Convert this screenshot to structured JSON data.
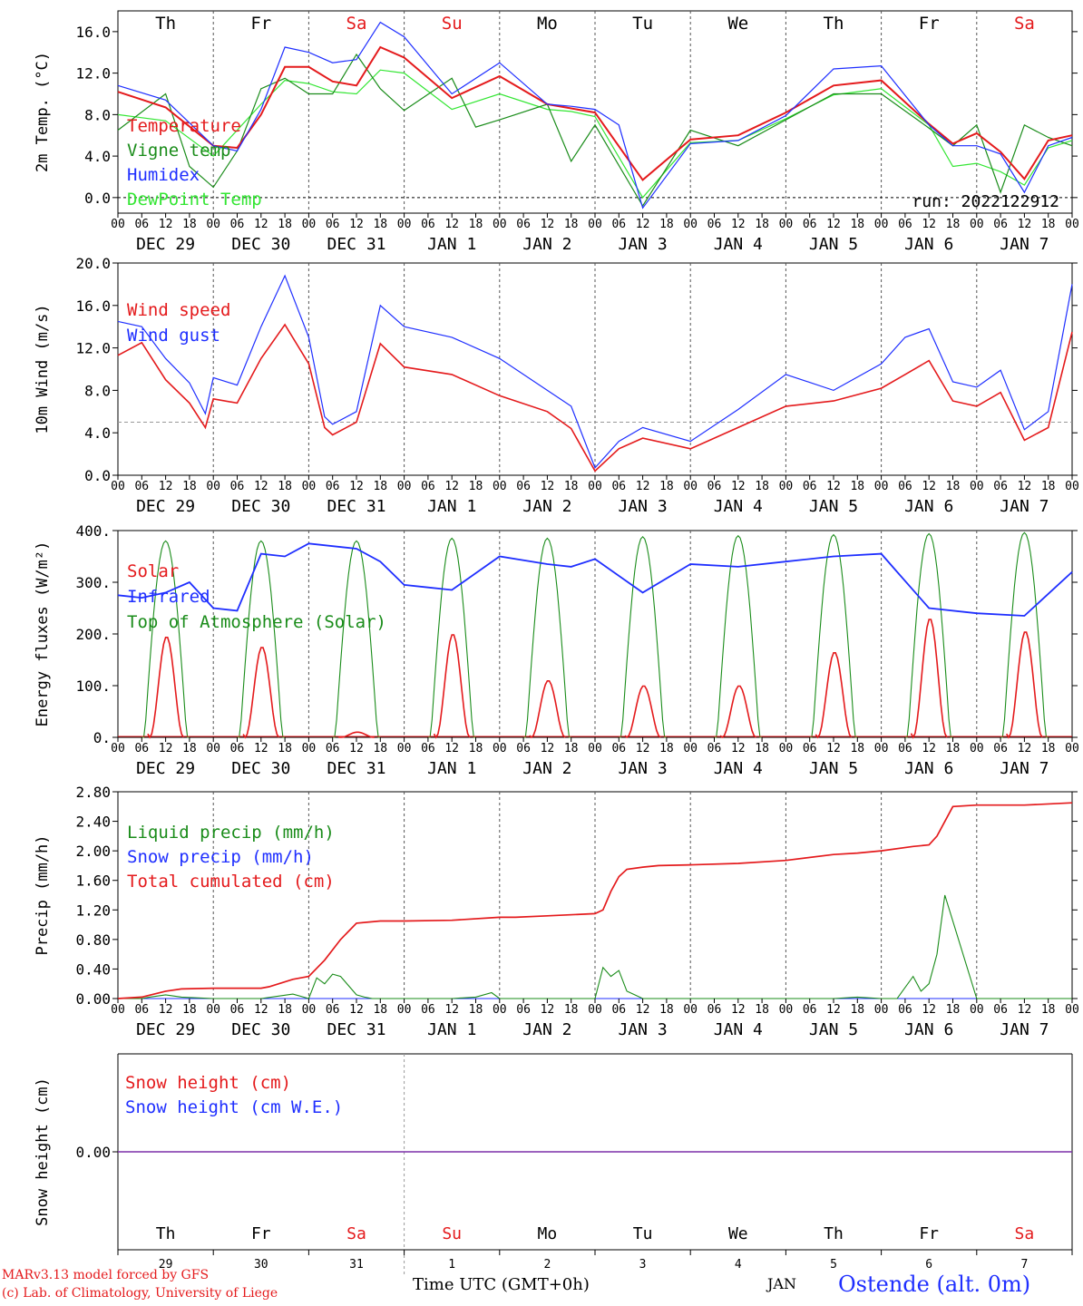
{
  "chart_data": [
    {
      "type": "line",
      "ylabel": "2m Temp. (°C)",
      "ylim": [
        -1.5,
        18.0
      ],
      "yticks": [
        "0.0",
        "4.0",
        "8.0",
        "12.0",
        "16.0"
      ],
      "annotation": "run: 2022122912",
      "weekdays": [
        "Th",
        "Fr",
        "Sa",
        "Su",
        "Mo",
        "Tu",
        "We",
        "Th",
        "Fr",
        "Sa"
      ],
      "weekday_colors": [
        "#000000",
        "#000000",
        "#e41a1c",
        "#e41a1c",
        "#000000",
        "#000000",
        "#000000",
        "#000000",
        "#000000",
        "#e41a1c"
      ],
      "series": [
        {
          "name": "Temperature",
          "color": "#e41a1c",
          "x": [
            0,
            12,
            24,
            30,
            36,
            42,
            48,
            54,
            60,
            66,
            72,
            84,
            96,
            108,
            114,
            120,
            132,
            144,
            156,
            168,
            180,
            192,
            204,
            210,
            216,
            222,
            228,
            234,
            240
          ],
          "values": [
            10.2,
            8.7,
            5.0,
            4.8,
            8.0,
            12.6,
            12.6,
            11.2,
            10.8,
            14.5,
            13.5,
            9.6,
            11.7,
            9.0,
            8.6,
            8.2,
            1.7,
            5.6,
            6.0,
            8.2,
            10.8,
            11.3,
            7.1,
            5.2,
            6.2,
            4.4,
            1.8,
            5.5,
            6.0
          ]
        },
        {
          "name": "Vigne temp",
          "color": "#1a8c1a",
          "x": [
            0,
            12,
            18,
            24,
            30,
            36,
            42,
            48,
            54,
            60,
            66,
            72,
            84,
            90,
            96,
            108,
            114,
            120,
            132,
            144,
            156,
            168,
            180,
            192,
            204,
            210,
            216,
            222,
            228,
            234,
            240
          ],
          "values": [
            6.5,
            10.0,
            3.0,
            1.0,
            4.5,
            10.5,
            11.5,
            10.0,
            10.0,
            13.8,
            10.5,
            8.4,
            11.5,
            6.8,
            7.5,
            9.0,
            3.5,
            7.0,
            -0.8,
            6.5,
            5.0,
            7.5,
            10.0,
            10.0,
            6.7,
            5.0,
            7.0,
            0.5,
            7.0,
            5.8,
            5.0
          ]
        },
        {
          "name": "Humidex",
          "color": "#1f2fff",
          "x": [
            0,
            12,
            24,
            30,
            36,
            42,
            48,
            54,
            60,
            66,
            72,
            84,
            96,
            108,
            114,
            120,
            126,
            132,
            144,
            156,
            168,
            180,
            192,
            204,
            210,
            216,
            222,
            228,
            234,
            240
          ],
          "values": [
            10.8,
            9.4,
            5.0,
            4.5,
            8.5,
            14.5,
            14.0,
            13.0,
            13.3,
            16.9,
            15.5,
            10.0,
            13.0,
            9.0,
            8.8,
            8.5,
            7.0,
            -1.0,
            5.2,
            5.5,
            7.9,
            12.4,
            12.7,
            7.0,
            5.0,
            5.0,
            4.2,
            0.5,
            5.0,
            5.8
          ]
        },
        {
          "name": "DewPoint Temp",
          "color": "#33e633",
          "x": [
            0,
            12,
            24,
            36,
            42,
            48,
            54,
            60,
            66,
            72,
            84,
            96,
            108,
            114,
            120,
            132,
            144,
            156,
            168,
            180,
            192,
            204,
            210,
            216,
            222,
            228,
            234,
            240
          ],
          "values": [
            8.0,
            7.4,
            4.0,
            9.0,
            11.3,
            11.0,
            10.2,
            10.0,
            12.3,
            12.0,
            8.5,
            10.0,
            8.5,
            8.3,
            7.8,
            0.0,
            5.3,
            5.5,
            7.6,
            9.9,
            10.5,
            7.0,
            3.0,
            3.3,
            2.5,
            1.2,
            4.8,
            5.5
          ]
        }
      ]
    },
    {
      "type": "line",
      "ylabel": "10m Wind (m/s)",
      "ylim": [
        0.0,
        20.0
      ],
      "yticks": [
        "0.0",
        "4.0",
        "8.0",
        "12.0",
        "16.0",
        "20.0"
      ],
      "reference_line": 5.0,
      "series": [
        {
          "name": "Wind speed",
          "color": "#e41a1c",
          "x": [
            0,
            6,
            12,
            18,
            22,
            24,
            30,
            36,
            42,
            48,
            52,
            54,
            60,
            66,
            72,
            84,
            96,
            108,
            114,
            120,
            126,
            132,
            144,
            156,
            168,
            180,
            192,
            198,
            204,
            210,
            216,
            222,
            228,
            234,
            240
          ],
          "values": [
            11.3,
            12.5,
            9.0,
            6.8,
            4.5,
            7.2,
            6.8,
            11.0,
            14.2,
            10.5,
            4.5,
            3.8,
            5.0,
            12.4,
            10.2,
            9.5,
            7.5,
            6.0,
            4.4,
            0.4,
            2.5,
            3.5,
            2.5,
            4.5,
            6.5,
            7.0,
            8.2,
            9.5,
            10.8,
            7.0,
            6.5,
            7.8,
            3.3,
            4.5,
            13.5
          ]
        },
        {
          "name": "Wind gust",
          "color": "#1f2fff",
          "x": [
            0,
            6,
            12,
            18,
            22,
            24,
            30,
            36,
            42,
            48,
            52,
            54,
            60,
            66,
            72,
            84,
            96,
            108,
            114,
            120,
            126,
            132,
            144,
            156,
            168,
            180,
            192,
            198,
            204,
            210,
            216,
            222,
            228,
            234,
            240
          ],
          "values": [
            14.5,
            14.0,
            11.0,
            8.7,
            5.8,
            9.2,
            8.5,
            14.0,
            18.8,
            13.0,
            5.5,
            4.8,
            6.0,
            16.0,
            14.0,
            13.0,
            11.0,
            8.0,
            6.5,
            0.7,
            3.2,
            4.5,
            3.2,
            6.2,
            9.5,
            8.0,
            10.5,
            13.0,
            13.8,
            8.8,
            8.3,
            9.9,
            4.3,
            6.0,
            18.0
          ]
        }
      ]
    },
    {
      "type": "line",
      "ylabel": "Energy fluxes (W/m²)",
      "ylim": [
        0,
        400
      ],
      "yticks": [
        "0.",
        "100.",
        "200.",
        "300.",
        "400."
      ],
      "series": [
        {
          "name": "Solar",
          "color": "#e41a1c",
          "peaks": [
            195,
            175,
            10,
            200,
            110,
            100,
            100,
            165,
            230,
            205
          ]
        },
        {
          "name": "Infrared",
          "color": "#1f2fff",
          "x": [
            0,
            6,
            12,
            18,
            24,
            30,
            36,
            42,
            48,
            60,
            66,
            72,
            78,
            84,
            96,
            108,
            114,
            120,
            132,
            144,
            156,
            168,
            180,
            192,
            196,
            204,
            216,
            228,
            240
          ],
          "values": [
            275,
            270,
            280,
            300,
            250,
            245,
            355,
            350,
            375,
            365,
            340,
            295,
            290,
            285,
            350,
            335,
            330,
            345,
            280,
            335,
            330,
            340,
            350,
            355,
            320,
            250,
            240,
            235,
            320
          ]
        },
        {
          "name": "Top of Atmosphere (Solar)",
          "color": "#1a8c1a",
          "peaks": [
            380,
            380,
            380,
            385,
            385,
            388,
            390,
            392,
            394,
            396
          ]
        }
      ]
    },
    {
      "type": "line",
      "ylabel": "Precip (mm/h)",
      "ylim": [
        0.0,
        2.8
      ],
      "yticks": [
        "0.00",
        "0.40",
        "0.80",
        "1.20",
        "1.60",
        "2.00",
        "2.40",
        "2.80"
      ],
      "series": [
        {
          "name": "Liquid precip (mm/h)",
          "color": "#1a8c1a",
          "x": [
            0,
            6,
            8,
            12,
            16,
            24,
            36,
            40,
            44,
            48,
            50,
            52,
            54,
            56,
            60,
            62,
            64,
            68,
            72,
            84,
            90,
            94,
            96,
            100,
            104,
            120,
            122,
            124,
            126,
            128,
            130,
            132,
            136,
            144,
            156,
            168,
            180,
            186,
            192,
            196,
            200,
            202,
            204,
            206,
            208,
            216,
            240
          ],
          "values": [
            0,
            0,
            0.02,
            0.05,
            0.02,
            0,
            0,
            0.03,
            0.06,
            0,
            0.28,
            0.2,
            0.33,
            0.3,
            0.05,
            0.02,
            0,
            0,
            0,
            0,
            0.02,
            0.08,
            0,
            0,
            0,
            0,
            0.42,
            0.3,
            0.38,
            0.1,
            0.05,
            0,
            0,
            0,
            0,
            0,
            0,
            0.02,
            0,
            0,
            0.3,
            0.1,
            0.2,
            0.6,
            1.4,
            0,
            0
          ]
        },
        {
          "name": "Snow precip (mm/h)",
          "color": "#1f2fff",
          "x": [
            0,
            240
          ],
          "values": [
            0,
            0
          ]
        },
        {
          "name": "Total cumulated (cm)",
          "color": "#e41a1c",
          "x": [
            0,
            6,
            12,
            16,
            24,
            36,
            38,
            44,
            46,
            48,
            52,
            56,
            60,
            66,
            72,
            84,
            96,
            100,
            108,
            120,
            122,
            124,
            126,
            128,
            132,
            136,
            144,
            156,
            168,
            180,
            186,
            192,
            200,
            204,
            206,
            210,
            216,
            228,
            240
          ],
          "values": [
            0,
            0.02,
            0.1,
            0.13,
            0.14,
            0.14,
            0.16,
            0.26,
            0.28,
            0.3,
            0.52,
            0.8,
            1.02,
            1.05,
            1.05,
            1.06,
            1.1,
            1.1,
            1.12,
            1.15,
            1.2,
            1.45,
            1.65,
            1.75,
            1.78,
            1.8,
            1.81,
            1.83,
            1.87,
            1.95,
            1.97,
            2.0,
            2.06,
            2.08,
            2.2,
            2.6,
            2.62,
            2.62,
            2.65
          ]
        }
      ]
    },
    {
      "type": "line",
      "ylabel": "Snow height (cm)",
      "yticks": [
        "0.00"
      ],
      "series": [
        {
          "name": "Snow height (cm)",
          "color": "#e41a1c",
          "x": [
            0,
            240
          ],
          "values": [
            0,
            0
          ]
        },
        {
          "name": "Snow height (cm W.E.)",
          "color": "#1f2fff",
          "x": [
            0,
            240
          ],
          "values": [
            0,
            0
          ]
        }
      ]
    }
  ],
  "time_axis": {
    "hour_ticks": [
      "00",
      "06",
      "12",
      "18"
    ],
    "end_tick": "00",
    "dates": [
      "DEC 29",
      "DEC 30",
      "DEC 31",
      "JAN  1",
      "JAN  2",
      "JAN  3",
      "JAN  4",
      "JAN  5",
      "JAN  6",
      "JAN  7"
    ],
    "day_numbers": [
      "29",
      "30",
      "31",
      "1",
      "2",
      "3",
      "4",
      "5",
      "6",
      "7"
    ]
  },
  "footer": {
    "model": "MARv3.13 model forced by GFS",
    "lab": "(c) Lab. of Climatology, University of Liege",
    "time_label": "Time UTC (GMT+0h)",
    "month": "JAN",
    "station": "Ostende (alt. 0m)"
  },
  "colors": {
    "red": "#e41a1c",
    "green": "#1a8c1a",
    "blue": "#1f2fff",
    "lightgreen": "#33e633",
    "grid": "#888888",
    "snow_line": "#7b2fa8"
  }
}
